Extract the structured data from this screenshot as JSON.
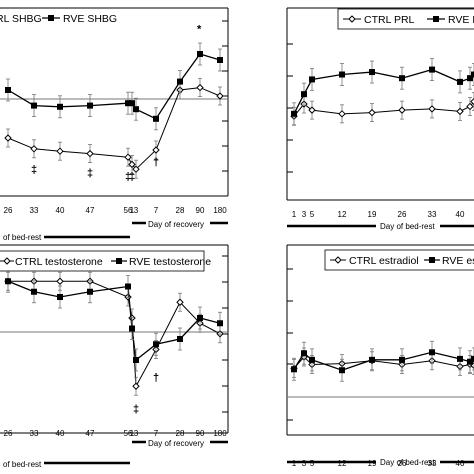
{
  "figure": {
    "background": "#ffffff",
    "ink": "#000000",
    "grey": "#777777"
  },
  "chart_data": [
    {
      "id": "shbg",
      "type": "line",
      "legend": [
        "CTRL SHBG",
        "RVE SHBG"
      ],
      "series": [
        {
          "name": "CTRL SHBG",
          "marker": "open",
          "x": [
            26,
            33,
            40,
            47,
            56,
            57,
            58,
            59,
            62,
            65,
            68
          ],
          "y": [
            40,
            31,
            29,
            27,
            24,
            18,
            14,
            30,
            80,
            82,
            75
          ]
        },
        {
          "name": "RVE SHBG",
          "marker": "filled",
          "x": [
            26,
            33,
            40,
            47,
            56,
            57,
            58,
            59,
            62,
            65,
            68
          ],
          "y": [
            80,
            67,
            66,
            67,
            69,
            69,
            64,
            56,
            87,
            110,
            105
          ]
        }
      ],
      "x_ticks": [
        {
          "x": 26,
          "label": "26"
        },
        {
          "x": 33,
          "label": "33"
        },
        {
          "x": 40,
          "label": "40"
        },
        {
          "x": 47,
          "label": "47"
        },
        {
          "x": 56,
          "label": "56"
        },
        {
          "x": 57,
          "label": "1"
        },
        {
          "x": 58,
          "label": "3"
        },
        {
          "x": 59,
          "label": "7"
        },
        {
          "x": 62,
          "label": "28"
        },
        {
          "x": 65,
          "label": "90"
        },
        {
          "x": 68,
          "label": "180"
        }
      ],
      "recovery_label": "Day of recovery",
      "bedrest_label": "of bed-rest",
      "annotations": [
        {
          "x": 33,
          "y": 11,
          "text": "‡"
        },
        {
          "x": 47,
          "y": 8,
          "text": "‡"
        },
        {
          "x": 56,
          "y": 5,
          "text": "‡"
        },
        {
          "x": 57,
          "y": 5,
          "text": "‡"
        },
        {
          "x": 59,
          "y": 17,
          "text": "†"
        },
        {
          "x": 65,
          "y": 128,
          "text": "*"
        }
      ]
    },
    {
      "id": "prl",
      "type": "line",
      "legend": [
        "CTRL PRL",
        "RVE PRL"
      ],
      "series": [
        {
          "name": "CTRL PRL",
          "marker": "open",
          "x": [
            1,
            2,
            3,
            5,
            12,
            19,
            26,
            33,
            40,
            47
          ],
          "y": [
            60,
            70,
            65,
            62,
            63,
            65,
            66,
            64,
            68,
            72
          ]
        },
        {
          "name": "RVE PRL",
          "marker": "filled",
          "x": [
            1,
            2,
            3,
            5,
            12,
            19,
            26,
            33,
            40,
            47
          ],
          "y": [
            62,
            78,
            90,
            94,
            96,
            91,
            98,
            88,
            91,
            94
          ]
        }
      ],
      "x_ticks": [
        {
          "x": 1,
          "label": "1"
        },
        {
          "x": 2,
          "label": "3"
        },
        {
          "x": 3,
          "label": "5"
        },
        {
          "x": 5,
          "label": "12"
        },
        {
          "x": 12,
          "label": "19"
        },
        {
          "x": 19,
          "label": "26"
        },
        {
          "x": 26,
          "label": "33"
        },
        {
          "x": 33,
          "label": "40"
        }
      ],
      "bedrest_label": "Day of bed-rest"
    },
    {
      "id": "testosterone",
      "type": "line",
      "legend": [
        "CTRL testosterone",
        "RVE testosterone"
      ],
      "series": [
        {
          "name": "CTRL testosterone",
          "marker": "open",
          "x": [
            26,
            33,
            40,
            47,
            56,
            57,
            58,
            59,
            62,
            65,
            68
          ],
          "y": [
            13.5,
            13.5,
            13.5,
            13.5,
            12.0,
            10.0,
            3.5,
            7.0,
            11.5,
            9.5,
            8.5
          ]
        },
        {
          "name": "RVE testosterone",
          "marker": "filled",
          "x": [
            26,
            33,
            40,
            47,
            56,
            57,
            58,
            59,
            62,
            65,
            68
          ],
          "y": [
            13.5,
            12.5,
            12.0,
            12.5,
            13.0,
            9.0,
            6.0,
            7.5,
            8.0,
            10.0,
            9.5
          ]
        }
      ],
      "x_ticks": [
        {
          "x": 26,
          "label": "26"
        },
        {
          "x": 33,
          "label": "33"
        },
        {
          "x": 40,
          "label": "40"
        },
        {
          "x": 47,
          "label": "47"
        },
        {
          "x": 56,
          "label": "56"
        },
        {
          "x": 57,
          "label": "1"
        },
        {
          "x": 58,
          "label": "3"
        },
        {
          "x": 59,
          "label": "7"
        },
        {
          "x": 62,
          "label": "28"
        },
        {
          "x": 65,
          "label": "90"
        },
        {
          "x": 68,
          "label": "180"
        }
      ],
      "recovery_label": "Day of recovery",
      "bedrest_label": "of bed-rest",
      "annotations": [
        {
          "x": 58,
          "y": 1.0,
          "text": "‡"
        },
        {
          "x": 59,
          "y": 4.0,
          "text": "†"
        }
      ]
    },
    {
      "id": "estradiol",
      "type": "line",
      "legend": [
        "CTRL estradiol",
        "RVE estradiol"
      ],
      "series": [
        {
          "name": "CTRL estradiol",
          "marker": "open",
          "x": [
            1,
            2,
            3,
            5,
            12,
            19,
            26,
            33,
            40,
            47
          ],
          "y": [
            100,
            112,
            104,
            105,
            108,
            104,
            108,
            102,
            104,
            103
          ]
        },
        {
          "name": "RVE estradiol",
          "marker": "filled",
          "x": [
            1,
            2,
            3,
            5,
            12,
            19,
            26,
            33,
            40,
            47
          ],
          "y": [
            99,
            116,
            109,
            98,
            109,
            109,
            117,
            110,
            107,
            110
          ]
        }
      ],
      "x_ticks": [
        {
          "x": 1,
          "label": "1"
        },
        {
          "x": 2,
          "label": "3"
        },
        {
          "x": 3,
          "label": "5"
        },
        {
          "x": 5,
          "label": "12"
        },
        {
          "x": 12,
          "label": "19"
        },
        {
          "x": 19,
          "label": "26"
        },
        {
          "x": 26,
          "label": "33"
        },
        {
          "x": 33,
          "label": "40"
        }
      ],
      "bedrest_label": "Day of bed-rest"
    }
  ]
}
